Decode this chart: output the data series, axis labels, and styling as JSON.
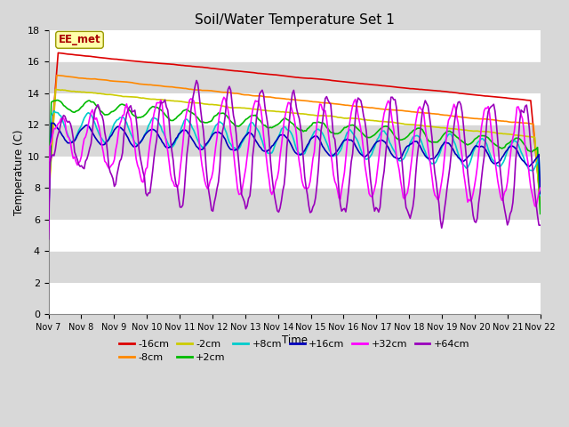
{
  "title": "Soil/Water Temperature Set 1",
  "xlabel": "Time",
  "ylabel": "Temperature (C)",
  "ylim": [
    0,
    18
  ],
  "yticks": [
    0,
    2,
    4,
    6,
    8,
    10,
    12,
    14,
    16,
    18
  ],
  "xtick_labels": [
    "Nov 7",
    "Nov 8",
    "Nov 9",
    "Nov 10",
    "Nov 11",
    "Nov 12",
    "Nov 13",
    "Nov 14",
    "Nov 15",
    "Nov 16",
    "Nov 17",
    "Nov 18",
    "Nov 19",
    "Nov 20",
    "Nov 21",
    "Nov 22"
  ],
  "background_color": "#d8d8d8",
  "plot_bg_color": "#d8d8d8",
  "white_band_color": "#ffffff",
  "series": {
    "-16cm": {
      "color": "#dd0000",
      "linewidth": 1.2
    },
    "-8cm": {
      "color": "#ff8800",
      "linewidth": 1.2
    },
    "-2cm": {
      "color": "#cccc00",
      "linewidth": 1.2
    },
    "+2cm": {
      "color": "#00bb00",
      "linewidth": 1.2
    },
    "+8cm": {
      "color": "#00cccc",
      "linewidth": 1.2
    },
    "+16cm": {
      "color": "#0000bb",
      "linewidth": 1.2
    },
    "+32cm": {
      "color": "#ff00ff",
      "linewidth": 1.2
    },
    "+64cm": {
      "color": "#9900bb",
      "linewidth": 1.2
    }
  },
  "annotation_text": "EE_met",
  "annotation_color": "#aa0000",
  "annotation_bg": "#ffffaa",
  "annotation_border": "#999900",
  "legend_ncol1": 6,
  "legend_ncol2": 2
}
